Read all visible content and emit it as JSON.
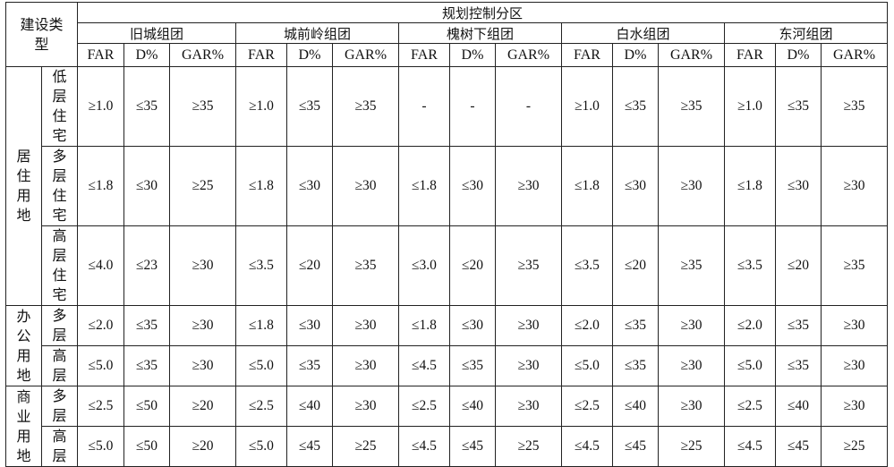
{
  "header": {
    "type_label": "建设类型",
    "zone_label": "规划控制分区",
    "zones": [
      "旧城组团",
      "城前岭组团",
      "槐树下组团",
      "白水组团",
      "东河组团"
    ],
    "metrics": [
      "FAR",
      "D%",
      "GAR%"
    ]
  },
  "groups": [
    {
      "name": "居住用地",
      "rows": [
        {
          "type": "低层住宅",
          "values": [
            "≥1.0",
            "≤35",
            "≥35",
            "≥1.0",
            "≤35",
            "≥35",
            "-",
            "-",
            "-",
            "≥1.0",
            "≤35",
            "≥35",
            "≥1.0",
            "≤35",
            "≥35"
          ]
        },
        {
          "type": "多层住宅",
          "values": [
            "≤1.8",
            "≤30",
            "≥25",
            "≤1.8",
            "≤30",
            "≥30",
            "≤1.8",
            "≤30",
            "≥30",
            "≤1.8",
            "≤30",
            "≥30",
            "≤1.8",
            "≤30",
            "≥30"
          ]
        },
        {
          "type": "高层住宅",
          "values": [
            "≤4.0",
            "≤23",
            "≥30",
            "≤3.5",
            "≤20",
            "≥35",
            "≤3.0",
            "≤20",
            "≥35",
            "≤3.5",
            "≤20",
            "≥35",
            "≤3.5",
            "≤20",
            "≥35"
          ]
        }
      ]
    },
    {
      "name": "办公用地",
      "rows": [
        {
          "type": "多层",
          "values": [
            "≤2.0",
            "≤35",
            "≥30",
            "≤1.8",
            "≤30",
            "≥30",
            "≤1.8",
            "≤30",
            "≥30",
            "≤2.0",
            "≤35",
            "≥30",
            "≤2.0",
            "≤35",
            "≥30"
          ]
        },
        {
          "type": "高层",
          "values": [
            "≤5.0",
            "≤35",
            "≥30",
            "≤5.0",
            "≤35",
            "≥30",
            "≤4.5",
            "≤35",
            "≥30",
            "≤5.0",
            "≤35",
            "≥30",
            "≤5.0",
            "≤35",
            "≥30"
          ]
        }
      ]
    },
    {
      "name": "商业用地",
      "rows": [
        {
          "type": "多层",
          "values": [
            "≤2.5",
            "≤50",
            "≥20",
            "≤2.5",
            "≤40",
            "≥30",
            "≤2.5",
            "≤40",
            "≥30",
            "≤2.5",
            "≤40",
            "≥30",
            "≤2.5",
            "≤40",
            "≥30"
          ]
        },
        {
          "type": "高层",
          "values": [
            "≤5.0",
            "≤50",
            "≥20",
            "≤5.0",
            "≤45",
            "≥25",
            "≤4.5",
            "≤45",
            "≥25",
            "≤4.5",
            "≤45",
            "≥25",
            "≤4.5",
            "≤45",
            "≥25"
          ]
        }
      ]
    }
  ]
}
